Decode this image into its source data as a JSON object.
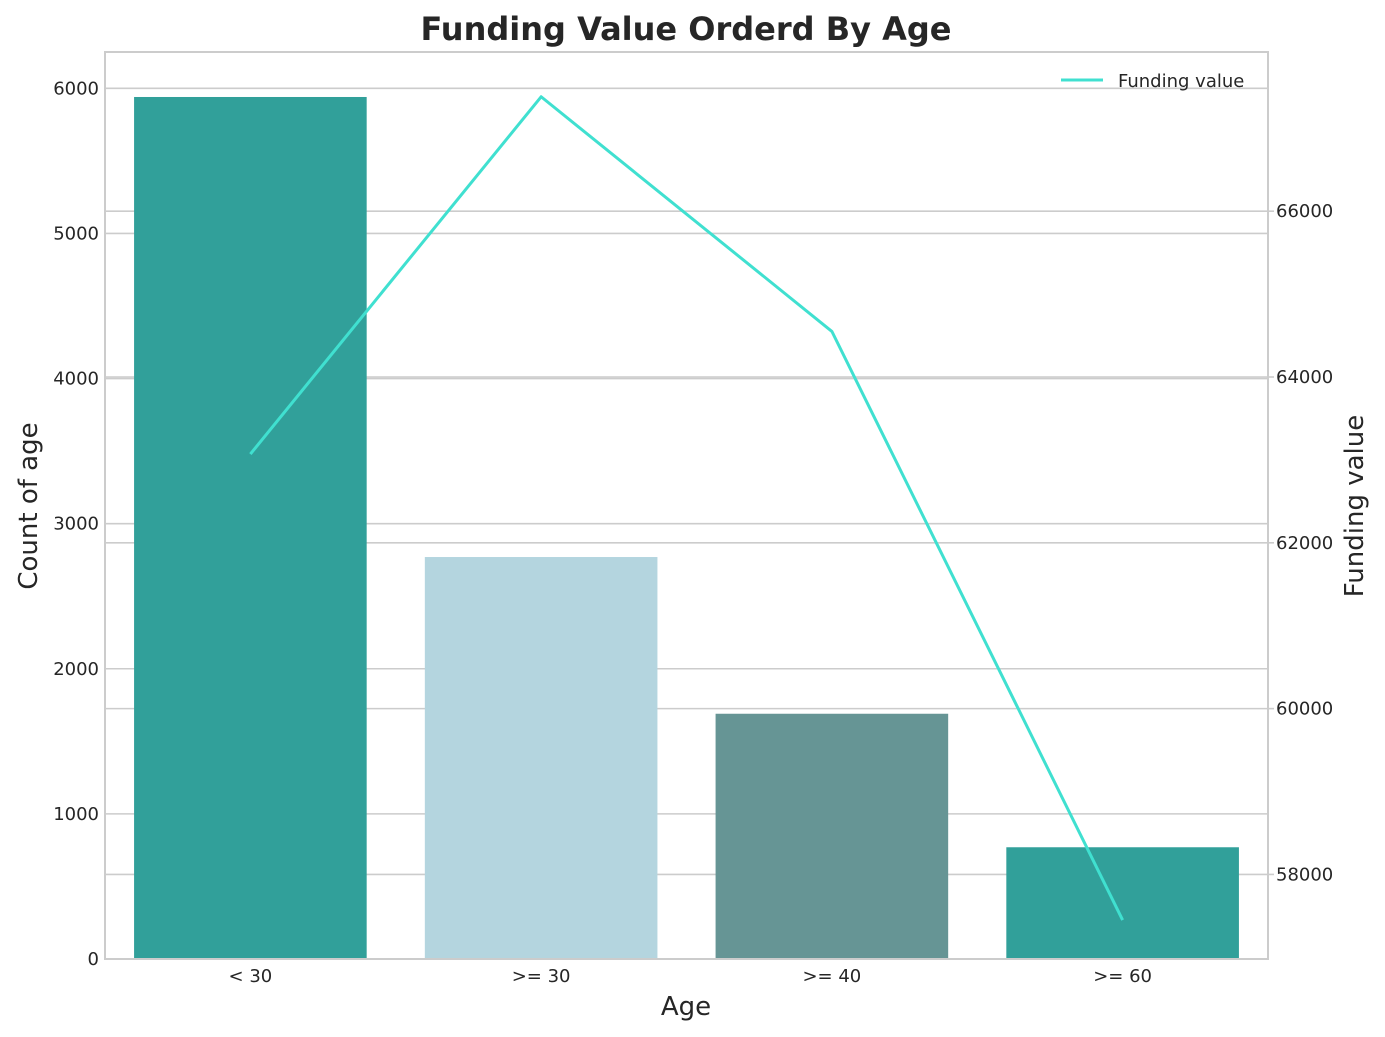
{
  "chart_data": {
    "type": "bar",
    "title": "Funding Value Orderd By Age",
    "xlabel": "Age",
    "ylabel": "Count of age",
    "y2label": "Funding value",
    "categories": [
      "< 30",
      ">= 30",
      ">= 40",
      ">= 60"
    ],
    "bar_series": {
      "name": "Count of age",
      "values": [
        5940,
        2770,
        1690,
        770
      ],
      "colors": [
        "#31a09a",
        "#b4d5df",
        "#669595",
        "#31a09a"
      ]
    },
    "line_series": {
      "name": "Funding value",
      "values": [
        63070,
        67380,
        64550,
        57450
      ],
      "color": "#40e0d0"
    },
    "ylim": [
      0,
      6250
    ],
    "y2lim": [
      56980,
      67920
    ],
    "yticks": [
      0,
      1000,
      2000,
      3000,
      4000,
      5000,
      6000
    ],
    "y2ticks": [
      58000,
      60000,
      62000,
      64000,
      66000
    ],
    "grid": true,
    "legend": {
      "position": "top-right",
      "entries": [
        "Funding value"
      ]
    }
  }
}
